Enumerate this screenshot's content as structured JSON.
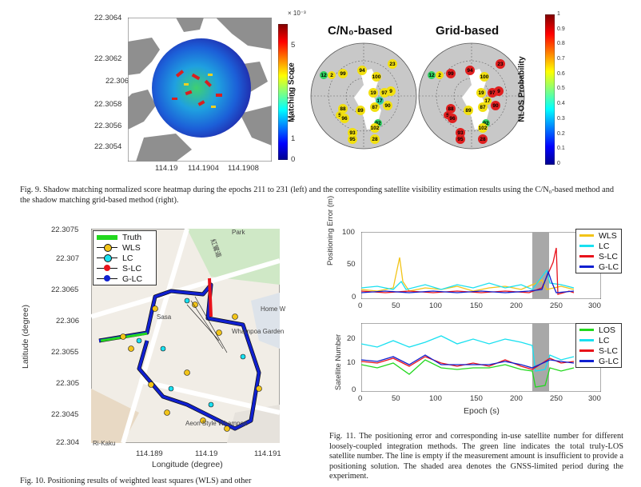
{
  "fig9": {
    "heatmap": {
      "yticks": [
        "22.3064",
        "22.3062",
        "22.306",
        "22.3058",
        "22.3056",
        "22.3054"
      ],
      "xticks": [
        "114.19",
        "114.1904",
        "114.1908"
      ]
    },
    "colorbar": {
      "exponent": "× 10⁻³",
      "ticks": [
        "5",
        "4",
        "3",
        "2",
        "1",
        "0"
      ],
      "label": "Matching Score"
    },
    "skyplot_left_title": "C/N₀-based",
    "skyplot_right_title": "Grid-based",
    "prob_colorbar": {
      "ticks": [
        "1",
        "0.9",
        "0.8",
        "0.7",
        "0.6",
        "0.5",
        "0.4",
        "0.3",
        "0.2",
        "0.1",
        "0"
      ],
      "label": "NLOS Probability"
    },
    "satellites": [
      "23",
      "94",
      "99",
      "100",
      "12",
      "2",
      "9",
      "19",
      "97",
      "17",
      "87",
      "90",
      "88",
      "5",
      "96",
      "89",
      "92",
      "102",
      "93",
      "95",
      "28"
    ],
    "caption": "Fig. 9.   Shadow matching normalized score heatmap during the epochs 211 to 231 (left) and the corresponding satellite visibility estimation results using the C/N₀-based method and the shadow matching grid-based method (right)."
  },
  "fig10": {
    "yticks": [
      "22.3075",
      "22.307",
      "22.3065",
      "22.306",
      "22.3055",
      "22.305",
      "22.3045",
      "22.304"
    ],
    "xticks": [
      "114.189",
      "114.19",
      "114.191"
    ],
    "ylabel": "Latitude (degree)",
    "xlabel": "Longitude (degree)",
    "legend": [
      "Truth",
      "WLS",
      "LC",
      "S-LC",
      "G-LC"
    ],
    "map_labels": [
      "Park",
      "紅鸞道",
      "Whampoa Garden",
      "Aeon Style Whampoa",
      "Home W",
      "Sasa",
      "Ri-Kaku"
    ],
    "caption": "Fig. 10.   Positioning results of weighted least squares (WLS) and other"
  },
  "fig11": {
    "top": {
      "ylabel": "Positioning Error (m)",
      "yticks": [
        "100",
        "50",
        "0"
      ],
      "xticks": [
        "0",
        "50",
        "100",
        "150",
        "200",
        "250",
        "300"
      ],
      "legend": [
        "WLS",
        "LC",
        "S-LC",
        "G-LC"
      ]
    },
    "bottom": {
      "ylabel": "Satellite Number",
      "yticks": [
        "20",
        "10",
        "0"
      ],
      "xticks": [
        "0",
        "50",
        "100",
        "150",
        "200",
        "250",
        "300"
      ],
      "xlabel": "Epoch (s)",
      "legend": [
        "LOS",
        "LC",
        "S-LC",
        "G-LC"
      ]
    },
    "caption": "Fig. 11.   The positioning error and corresponding in-use satellite number for different loosely-coupled integration methods. The green line indicates the total truly-LOS satellite number. The line is empty if the measurement amount is insufficient to provide a positioning solution. The shaded area denotes the GNSS-limited period during the experiment."
  },
  "colors": {
    "wls": "#f2c418",
    "lc": "#19e0f0",
    "slc": "#e8121b",
    "glc": "#1020d0",
    "los": "#22d81e",
    "truth": "#22d81e",
    "shade": "#a8a8a8"
  }
}
